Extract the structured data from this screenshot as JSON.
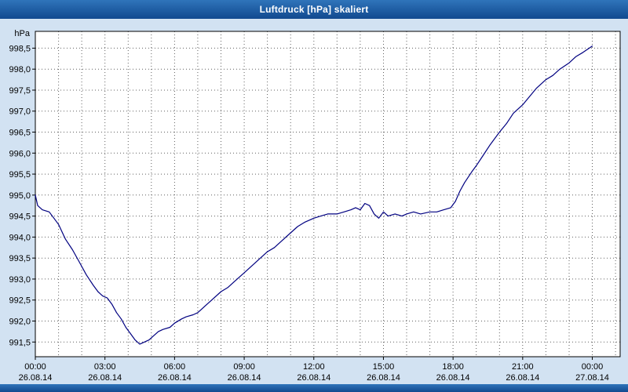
{
  "window": {
    "title": "Luftdruck [hPa] skaliert"
  },
  "chart_data": {
    "type": "line",
    "title": "Luftdruck [hPa] skaliert",
    "xlabel": "",
    "ylabel": "hPa",
    "xlim_hours": [
      0,
      25.2
    ],
    "ylim": [
      991.15,
      998.9
    ],
    "grid": true,
    "x_minor_step_hours": 1,
    "legend": "none",
    "y_ticks": [
      {
        "value": 998.5,
        "label": "998,5"
      },
      {
        "value": 998.0,
        "label": "998,0"
      },
      {
        "value": 997.5,
        "label": "997,5"
      },
      {
        "value": 997.0,
        "label": "997,0"
      },
      {
        "value": 996.5,
        "label": "996,5"
      },
      {
        "value": 996.0,
        "label": "996,0"
      },
      {
        "value": 995.5,
        "label": "995,5"
      },
      {
        "value": 995.0,
        "label": "995,0"
      },
      {
        "value": 994.5,
        "label": "994,5"
      },
      {
        "value": 994.0,
        "label": "994,0"
      },
      {
        "value": 993.5,
        "label": "993,5"
      },
      {
        "value": 993.0,
        "label": "993,0"
      },
      {
        "value": 992.5,
        "label": "992,5"
      },
      {
        "value": 992.0,
        "label": "992,0"
      },
      {
        "value": 991.5,
        "label": "991,5"
      }
    ],
    "x_ticks": [
      {
        "hour": 0,
        "time": "00:00",
        "date": "26.08.14"
      },
      {
        "hour": 3,
        "time": "03:00",
        "date": "26.08.14"
      },
      {
        "hour": 6,
        "time": "06:00",
        "date": "26.08.14"
      },
      {
        "hour": 9,
        "time": "09:00",
        "date": "26.08.14"
      },
      {
        "hour": 12,
        "time": "12:00",
        "date": "26.08.14"
      },
      {
        "hour": 15,
        "time": "15:00",
        "date": "26.08.14"
      },
      {
        "hour": 18,
        "time": "18:00",
        "date": "26.08.14"
      },
      {
        "hour": 21,
        "time": "21:00",
        "date": "26.08.14"
      },
      {
        "hour": 24,
        "time": "00:00",
        "date": "27.08.14"
      }
    ],
    "series": [
      {
        "name": "Luftdruck",
        "color": "#000080",
        "points": [
          [
            0.0,
            995.0
          ],
          [
            0.1,
            994.75
          ],
          [
            0.3,
            994.65
          ],
          [
            0.6,
            994.6
          ],
          [
            0.8,
            994.45
          ],
          [
            1.0,
            994.3
          ],
          [
            1.3,
            993.95
          ],
          [
            1.6,
            993.7
          ],
          [
            1.9,
            993.4
          ],
          [
            2.2,
            993.1
          ],
          [
            2.5,
            992.85
          ],
          [
            2.7,
            992.7
          ],
          [
            2.9,
            992.6
          ],
          [
            3.1,
            992.55
          ],
          [
            3.3,
            992.4
          ],
          [
            3.5,
            992.2
          ],
          [
            3.7,
            992.05
          ],
          [
            3.9,
            991.85
          ],
          [
            4.1,
            991.7
          ],
          [
            4.3,
            991.55
          ],
          [
            4.5,
            991.45
          ],
          [
            4.7,
            991.5
          ],
          [
            4.9,
            991.55
          ],
          [
            5.1,
            991.65
          ],
          [
            5.3,
            991.75
          ],
          [
            5.5,
            991.8
          ],
          [
            5.8,
            991.85
          ],
          [
            6.0,
            991.95
          ],
          [
            6.3,
            992.05
          ],
          [
            6.5,
            992.1
          ],
          [
            6.8,
            992.15
          ],
          [
            7.0,
            992.2
          ],
          [
            7.3,
            992.35
          ],
          [
            7.6,
            992.5
          ],
          [
            8.0,
            992.7
          ],
          [
            8.3,
            992.8
          ],
          [
            8.6,
            992.95
          ],
          [
            9.0,
            993.15
          ],
          [
            9.3,
            993.3
          ],
          [
            9.6,
            993.45
          ],
          [
            10.0,
            993.65
          ],
          [
            10.3,
            993.75
          ],
          [
            10.6,
            993.9
          ],
          [
            11.0,
            994.1
          ],
          [
            11.3,
            994.25
          ],
          [
            11.6,
            994.35
          ],
          [
            12.0,
            994.45
          ],
          [
            12.3,
            994.5
          ],
          [
            12.6,
            994.55
          ],
          [
            13.0,
            994.55
          ],
          [
            13.3,
            994.6
          ],
          [
            13.6,
            994.65
          ],
          [
            13.8,
            994.7
          ],
          [
            14.0,
            994.65
          ],
          [
            14.2,
            994.8
          ],
          [
            14.4,
            994.75
          ],
          [
            14.6,
            994.55
          ],
          [
            14.8,
            994.45
          ],
          [
            15.0,
            994.6
          ],
          [
            15.2,
            994.5
          ],
          [
            15.5,
            994.55
          ],
          [
            15.8,
            994.5
          ],
          [
            16.0,
            994.55
          ],
          [
            16.3,
            994.6
          ],
          [
            16.6,
            994.55
          ],
          [
            17.0,
            994.6
          ],
          [
            17.3,
            994.6
          ],
          [
            17.6,
            994.65
          ],
          [
            17.9,
            994.7
          ],
          [
            18.1,
            994.85
          ],
          [
            18.3,
            995.1
          ],
          [
            18.5,
            995.3
          ],
          [
            18.8,
            995.55
          ],
          [
            19.0,
            995.7
          ],
          [
            19.3,
            995.95
          ],
          [
            19.6,
            996.2
          ],
          [
            20.0,
            996.5
          ],
          [
            20.3,
            996.7
          ],
          [
            20.6,
            996.95
          ],
          [
            21.0,
            997.15
          ],
          [
            21.3,
            997.35
          ],
          [
            21.6,
            997.55
          ],
          [
            22.0,
            997.75
          ],
          [
            22.3,
            997.85
          ],
          [
            22.6,
            998.0
          ],
          [
            23.0,
            998.15
          ],
          [
            23.3,
            998.3
          ],
          [
            23.6,
            998.4
          ],
          [
            24.0,
            998.55
          ]
        ]
      }
    ],
    "colors": {
      "plot_bg": "#ffffff",
      "outer_bg": "#d2e2f2",
      "frame": "#000000",
      "grid": "#606060",
      "text": "#000000",
      "titlebar": "#1a5ca8",
      "line": "#000080"
    }
  }
}
